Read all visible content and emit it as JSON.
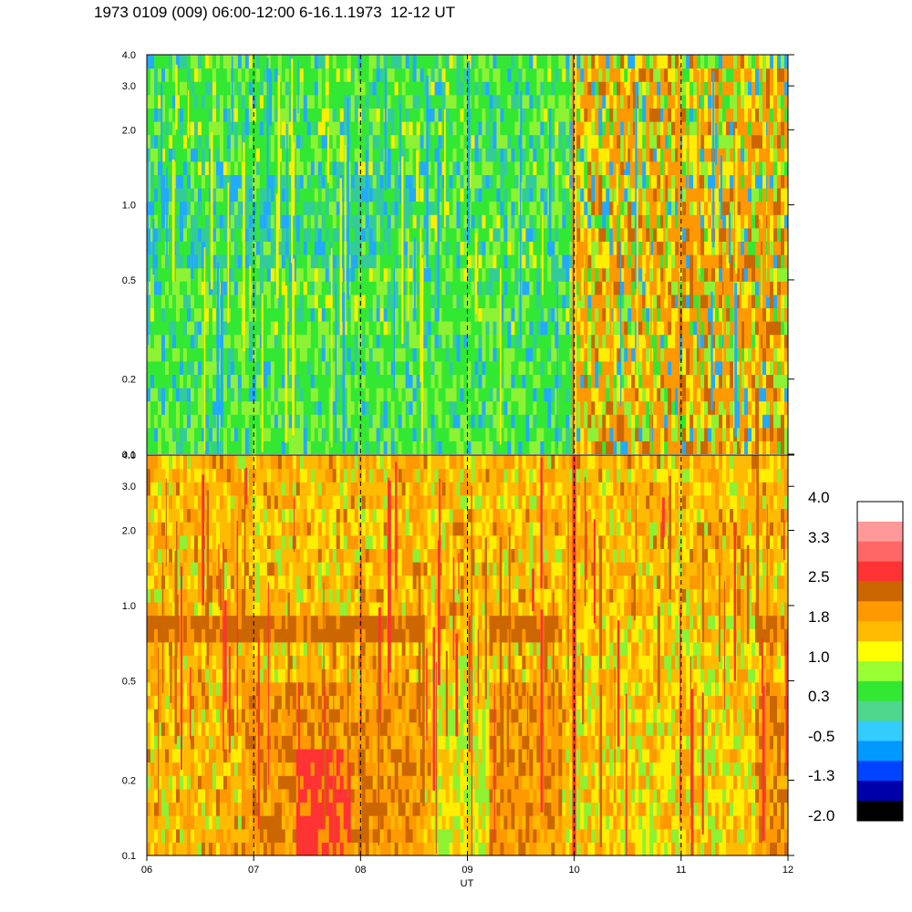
{
  "title": "1973 0109 (009) 06:00-12:00 6-16.1.1973  12-12 UT",
  "chart_data": [
    {
      "type": "heatmap",
      "panel": "upper",
      "x_range": [
        "06",
        "12"
      ],
      "y_scale": "log",
      "ylim": [
        0.1,
        4.0
      ],
      "y_ticks": [
        "0.1",
        "0.2",
        "0.5",
        "1.0",
        "2.0",
        "3.0",
        "4.0"
      ],
      "day_markers": [
        "07",
        "08",
        "09",
        "10",
        "11"
      ],
      "dominant_colors": [
        "#33e833",
        "#8cf233",
        "#33cc99",
        "#22aaff",
        "#ffee00",
        "#ff9900",
        "#cc6600"
      ],
      "notes": "mostly green/blue background; strong orange/red activity after 10 UT; sharp red line at 10 UT"
    },
    {
      "type": "heatmap",
      "panel": "lower",
      "x_range": [
        "06",
        "12"
      ],
      "y_scale": "log",
      "ylim": [
        0.1,
        4.0
      ],
      "y_ticks": [
        "0.1",
        "0.2",
        "0.5",
        "1.0",
        "2.0",
        "3.0",
        "4.0"
      ],
      "day_markers": [
        "07",
        "08",
        "09",
        "10",
        "11"
      ],
      "dominant_colors": [
        "#ffbb00",
        "#ff9900",
        "#ffee00",
        "#cc6600",
        "#ff3333",
        "#8cf233"
      ],
      "notes": "orange/yellow background; dark orange band near 0.85; red patch near 07:40 at low values"
    }
  ],
  "x_axis": {
    "ticks": [
      "06",
      "07",
      "08",
      "09",
      "10",
      "11",
      "12"
    ],
    "label": "UT"
  },
  "colorbar": {
    "labels": [
      "4.0",
      "3.3",
      "2.5",
      "1.8",
      "1.0",
      "0.3",
      "-0.5",
      "-1.3",
      "-2.0"
    ],
    "colors": [
      "#ffffff",
      "#ff9999",
      "#ff6666",
      "#ff3333",
      "#cc6600",
      "#ff9900",
      "#ffbb00",
      "#ffff00",
      "#99ff33",
      "#33e833",
      "#4dd68c",
      "#33ccff",
      "#0099ff",
      "#0044ff",
      "#0000aa",
      "#000000"
    ]
  }
}
